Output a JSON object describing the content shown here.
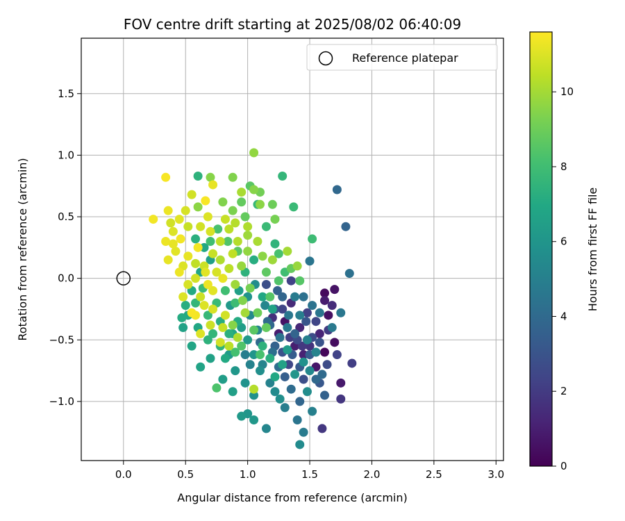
{
  "chart_data": {
    "type": "scatter",
    "title": "FOV centre drift starting at 2025/08/02 06:40:09",
    "xlabel": "Angular distance from reference (arcmin)",
    "ylabel": "Rotation from reference (arcmin)",
    "colorbar_label": "Hours from first FF file",
    "xlim": [
      -0.34,
      3.06
    ],
    "ylim": [
      -1.48,
      1.95
    ],
    "x_ticks": [
      0.0,
      0.5,
      1.0,
      1.5,
      2.0,
      2.5,
      3.0
    ],
    "x_tick_labels": [
      "0.0",
      "0.5",
      "1.0",
      "1.5",
      "2.0",
      "2.5",
      "3.0"
    ],
    "y_ticks": [
      -1.0,
      -0.5,
      0.0,
      0.5,
      1.0,
      1.5
    ],
    "y_tick_labels": [
      "−1.0",
      "−0.5",
      "0.0",
      "0.5",
      "1.0",
      "1.5"
    ],
    "colorbar_range": [
      0,
      11.6
    ],
    "colorbar_ticks": [
      0,
      2,
      4,
      6,
      8,
      10
    ],
    "colorbar_tick_labels": [
      "0",
      "2",
      "4",
      "6",
      "8",
      "10"
    ],
    "colormap": "viridis",
    "grid": true,
    "legend": {
      "position": "top-right",
      "entries": [
        {
          "label": "Reference platepar",
          "marker": "open-circle"
        }
      ]
    },
    "reference_point": {
      "x": 0.0,
      "y": 0.0
    },
    "points": [
      {
        "x": 1.62,
        "y": -0.12,
        "t": 0.3
      },
      {
        "x": 1.7,
        "y": -0.09,
        "t": 0.6
      },
      {
        "x": 1.62,
        "y": -0.18,
        "t": 0.9
      },
      {
        "x": 1.65,
        "y": -0.3,
        "t": 0.5
      },
      {
        "x": 1.58,
        "y": -0.45,
        "t": 1.2
      },
      {
        "x": 1.62,
        "y": -0.6,
        "t": 0.2
      },
      {
        "x": 1.7,
        "y": -0.52,
        "t": 0.4
      },
      {
        "x": 1.75,
        "y": -0.85,
        "t": 0.8
      },
      {
        "x": 1.45,
        "y": -0.62,
        "t": 1.1
      },
      {
        "x": 1.55,
        "y": -0.72,
        "t": 0.7
      },
      {
        "x": 1.38,
        "y": -0.55,
        "t": 1.0
      },
      {
        "x": 1.3,
        "y": -0.35,
        "t": 0.6
      },
      {
        "x": 1.35,
        "y": -0.2,
        "t": 1.4
      },
      {
        "x": 1.25,
        "y": -0.45,
        "t": 0.9
      },
      {
        "x": 1.2,
        "y": -0.32,
        "t": 1.6
      },
      {
        "x": 1.42,
        "y": -0.4,
        "t": 1.3
      },
      {
        "x": 1.5,
        "y": -0.55,
        "t": 1.7
      },
      {
        "x": 1.6,
        "y": -1.22,
        "t": 1.9
      },
      {
        "x": 1.75,
        "y": -0.98,
        "t": 1.8
      },
      {
        "x": 1.84,
        "y": -0.69,
        "t": 2.1
      },
      {
        "x": 1.72,
        "y": -0.62,
        "t": 2.3
      },
      {
        "x": 1.65,
        "y": -0.42,
        "t": 2.0
      },
      {
        "x": 1.55,
        "y": -0.35,
        "t": 2.4
      },
      {
        "x": 1.48,
        "y": -0.28,
        "t": 2.2
      },
      {
        "x": 1.4,
        "y": -0.5,
        "t": 2.6
      },
      {
        "x": 1.33,
        "y": -0.7,
        "t": 2.5
      },
      {
        "x": 1.45,
        "y": -0.82,
        "t": 2.8
      },
      {
        "x": 1.52,
        "y": -0.48,
        "t": 2.7
      },
      {
        "x": 1.28,
        "y": -0.6,
        "t": 2.9
      },
      {
        "x": 1.35,
        "y": -0.02,
        "t": 2.3
      },
      {
        "x": 1.15,
        "y": -0.05,
        "t": 2.8
      },
      {
        "x": 1.22,
        "y": -0.25,
        "t": 3.0
      },
      {
        "x": 1.47,
        "y": -0.35,
        "t": 3.1
      },
      {
        "x": 1.42,
        "y": -0.72,
        "t": 3.3
      },
      {
        "x": 1.58,
        "y": -0.85,
        "t": 3.2
      },
      {
        "x": 1.5,
        "y": -0.62,
        "t": 3.4
      },
      {
        "x": 1.3,
        "y": -0.8,
        "t": 3.5
      },
      {
        "x": 1.22,
        "y": -0.55,
        "t": 3.6
      },
      {
        "x": 1.38,
        "y": -0.45,
        "t": 3.7
      },
      {
        "x": 1.28,
        "y": -0.15,
        "t": 3.8
      },
      {
        "x": 1.18,
        "y": -0.38,
        "t": 3.9
      },
      {
        "x": 1.1,
        "y": -0.52,
        "t": 4.0
      },
      {
        "x": 1.42,
        "y": -1.0,
        "t": 3.8
      },
      {
        "x": 1.62,
        "y": -0.95,
        "t": 3.6
      },
      {
        "x": 1.55,
        "y": -0.82,
        "t": 3.9
      },
      {
        "x": 1.35,
        "y": -0.9,
        "t": 4.1
      },
      {
        "x": 1.25,
        "y": -0.72,
        "t": 4.2
      },
      {
        "x": 1.45,
        "y": -0.15,
        "t": 4.3
      },
      {
        "x": 1.52,
        "y": -0.22,
        "t": 4.4
      },
      {
        "x": 1.58,
        "y": -0.28,
        "t": 4.5
      },
      {
        "x": 1.33,
        "y": -0.3,
        "t": 4.6
      },
      {
        "x": 1.72,
        "y": 0.72,
        "t": 3.9
      },
      {
        "x": 1.79,
        "y": 0.42,
        "t": 3.7
      },
      {
        "x": 1.82,
        "y": 0.04,
        "t": 4.3
      },
      {
        "x": 1.5,
        "y": 0.14,
        "t": 4.5
      },
      {
        "x": 1.75,
        "y": -0.28,
        "t": 4.6
      },
      {
        "x": 1.68,
        "y": -0.4,
        "t": 4.7
      },
      {
        "x": 1.4,
        "y": -1.15,
        "t": 4.5
      },
      {
        "x": 1.45,
        "y": -1.25,
        "t": 4.8
      },
      {
        "x": 1.52,
        "y": -1.08,
        "t": 5.0
      },
      {
        "x": 1.3,
        "y": -1.05,
        "t": 4.9
      },
      {
        "x": 1.18,
        "y": -0.85,
        "t": 5.1
      },
      {
        "x": 1.12,
        "y": -0.7,
        "t": 5.2
      },
      {
        "x": 1.08,
        "y": -0.42,
        "t": 5.3
      },
      {
        "x": 1.02,
        "y": -0.3,
        "t": 5.4
      },
      {
        "x": 1.15,
        "y": -1.22,
        "t": 5.3
      },
      {
        "x": 1.42,
        "y": -1.35,
        "t": 5.5
      },
      {
        "x": 1.6,
        "y": -0.78,
        "t": 4.0
      },
      {
        "x": 1.48,
        "y": -0.92,
        "t": 5.6
      },
      {
        "x": 1.26,
        "y": -0.98,
        "t": 5.7
      },
      {
        "x": 1.05,
        "y": -0.95,
        "t": 5.8
      },
      {
        "x": 0.98,
        "y": -0.85,
        "t": 5.9
      },
      {
        "x": 1.0,
        "y": -1.1,
        "t": 6.0
      },
      {
        "x": 1.05,
        "y": -1.15,
        "t": 6.1
      },
      {
        "x": 0.95,
        "y": -1.12,
        "t": 6.2
      },
      {
        "x": 0.9,
        "y": -0.75,
        "t": 6.1
      },
      {
        "x": 0.85,
        "y": -0.62,
        "t": 6.3
      },
      {
        "x": 0.8,
        "y": -0.82,
        "t": 6.4
      },
      {
        "x": 0.88,
        "y": -0.92,
        "t": 6.5
      },
      {
        "x": 0.7,
        "y": -0.65,
        "t": 6.6
      },
      {
        "x": 0.62,
        "y": -0.72,
        "t": 6.7
      },
      {
        "x": 0.55,
        "y": -0.55,
        "t": 6.8
      },
      {
        "x": 0.6,
        "y": -0.4,
        "t": 6.9
      },
      {
        "x": 0.52,
        "y": -0.3,
        "t": 7.0
      },
      {
        "x": 0.48,
        "y": -0.4,
        "t": 6.6
      },
      {
        "x": 0.47,
        "y": -0.32,
        "t": 7.1
      },
      {
        "x": 0.5,
        "y": -0.22,
        "t": 7.2
      },
      {
        "x": 0.55,
        "y": -0.1,
        "t": 7.0
      },
      {
        "x": 0.62,
        "y": 0.05,
        "t": 6.8
      },
      {
        "x": 0.7,
        "y": 0.15,
        "t": 6.5
      },
      {
        "x": 0.65,
        "y": 0.25,
        "t": 6.9
      },
      {
        "x": 0.58,
        "y": 0.32,
        "t": 7.3
      },
      {
        "x": 0.6,
        "y": 0.83,
        "t": 7.4
      },
      {
        "x": 1.28,
        "y": 0.83,
        "t": 7.6
      },
      {
        "x": 1.52,
        "y": 0.32,
        "t": 7.9
      },
      {
        "x": 1.37,
        "y": 0.58,
        "t": 7.8
      },
      {
        "x": 1.08,
        "y": 0.6,
        "t": 7.7
      },
      {
        "x": 1.15,
        "y": 0.42,
        "t": 7.8
      },
      {
        "x": 1.22,
        "y": 0.28,
        "t": 7.5
      },
      {
        "x": 1.05,
        "y": 0.15,
        "t": 7.2
      },
      {
        "x": 0.98,
        "y": 0.05,
        "t": 7.4
      },
      {
        "x": 1.12,
        "y": -0.15,
        "t": 6.9
      },
      {
        "x": 1.2,
        "y": -0.25,
        "t": 6.7
      },
      {
        "x": 0.92,
        "y": -0.35,
        "t": 7.1
      },
      {
        "x": 0.85,
        "y": -0.45,
        "t": 7.3
      },
      {
        "x": 0.78,
        "y": -0.55,
        "t": 7.5
      },
      {
        "x": 0.72,
        "y": -0.45,
        "t": 7.6
      },
      {
        "x": 0.68,
        "y": -0.3,
        "t": 7.7
      },
      {
        "x": 0.75,
        "y": -0.2,
        "t": 7.8
      },
      {
        "x": 0.82,
        "y": -0.1,
        "t": 8.0
      },
      {
        "x": 0.9,
        "y": -0.2,
        "t": 7.9
      },
      {
        "x": 0.95,
        "y": -0.4,
        "t": 6.4
      },
      {
        "x": 1.0,
        "y": -0.5,
        "t": 6.2
      },
      {
        "x": 1.05,
        "y": -0.62,
        "t": 6.0
      },
      {
        "x": 1.1,
        "y": -0.75,
        "t": 5.7
      },
      {
        "x": 1.22,
        "y": -0.92,
        "t": 5.5
      },
      {
        "x": 0.75,
        "y": -0.89,
        "t": 8.3
      },
      {
        "x": 0.9,
        "y": -0.6,
        "t": 8.1
      },
      {
        "x": 0.95,
        "y": -0.55,
        "t": 8.4
      },
      {
        "x": 1.05,
        "y": -0.42,
        "t": 8.6
      },
      {
        "x": 1.1,
        "y": -0.62,
        "t": 8.2
      },
      {
        "x": 1.15,
        "y": 0.05,
        "t": 8.7
      },
      {
        "x": 1.25,
        "y": -0.02,
        "t": 8.4
      },
      {
        "x": 1.35,
        "y": 0.08,
        "t": 8.8
      },
      {
        "x": 1.42,
        "y": -0.02,
        "t": 8.5
      },
      {
        "x": 1.02,
        "y": 0.75,
        "t": 8.6
      },
      {
        "x": 0.95,
        "y": 0.62,
        "t": 8.8
      },
      {
        "x": 1.2,
        "y": 0.6,
        "t": 9.0
      },
      {
        "x": 1.22,
        "y": 0.48,
        "t": 9.2
      },
      {
        "x": 1.1,
        "y": 0.7,
        "t": 9.1
      },
      {
        "x": 0.88,
        "y": 0.55,
        "t": 9.3
      },
      {
        "x": 0.8,
        "y": 0.62,
        "t": 9.4
      },
      {
        "x": 0.7,
        "y": 0.82,
        "t": 9.5
      },
      {
        "x": 0.6,
        "y": 0.58,
        "t": 9.6
      },
      {
        "x": 1.05,
        "y": 1.02,
        "t": 9.7
      },
      {
        "x": 0.88,
        "y": 0.82,
        "t": 9.4
      },
      {
        "x": 1.05,
        "y": 0.72,
        "t": 9.5
      },
      {
        "x": 1.1,
        "y": 0.6,
        "t": 9.6
      },
      {
        "x": 1.32,
        "y": 0.22,
        "t": 10.0
      },
      {
        "x": 1.4,
        "y": 0.1,
        "t": 9.8
      },
      {
        "x": 1.2,
        "y": 0.15,
        "t": 9.9
      },
      {
        "x": 1.08,
        "y": 0.3,
        "t": 10.1
      },
      {
        "x": 1.0,
        "y": 0.42,
        "t": 10.2
      },
      {
        "x": 0.92,
        "y": 0.3,
        "t": 10.3
      },
      {
        "x": 0.85,
        "y": 0.4,
        "t": 10.4
      },
      {
        "x": 0.78,
        "y": 0.3,
        "t": 10.5
      },
      {
        "x": 0.72,
        "y": 0.2,
        "t": 10.6
      },
      {
        "x": 0.65,
        "y": 0.1,
        "t": 10.7
      },
      {
        "x": 0.58,
        "y": 0.0,
        "t": 10.8
      },
      {
        "x": 0.52,
        "y": -0.05,
        "t": 10.9
      },
      {
        "x": 0.48,
        "y": 0.1,
        "t": 11.0
      },
      {
        "x": 0.42,
        "y": 0.22,
        "t": 11.1
      },
      {
        "x": 0.36,
        "y": 0.15,
        "t": 11.2
      },
      {
        "x": 0.34,
        "y": 0.3,
        "t": 11.3
      },
      {
        "x": 0.4,
        "y": 0.38,
        "t": 11.0
      },
      {
        "x": 0.45,
        "y": 0.48,
        "t": 11.1
      },
      {
        "x": 0.5,
        "y": 0.55,
        "t": 10.9
      },
      {
        "x": 0.55,
        "y": 0.68,
        "t": 10.8
      },
      {
        "x": 0.34,
        "y": 0.82,
        "t": 11.5
      },
      {
        "x": 0.24,
        "y": 0.48,
        "t": 11.4
      },
      {
        "x": 0.36,
        "y": 0.55,
        "t": 11.3
      },
      {
        "x": 0.66,
        "y": 0.63,
        "t": 11.5
      },
      {
        "x": 0.72,
        "y": 0.76,
        "t": 11.2
      },
      {
        "x": 0.68,
        "y": 0.5,
        "t": 11.0
      },
      {
        "x": 0.7,
        "y": 0.38,
        "t": 10.9
      },
      {
        "x": 0.62,
        "y": 0.42,
        "t": 10.8
      },
      {
        "x": 0.82,
        "y": 0.48,
        "t": 10.6
      },
      {
        "x": 0.88,
        "y": 0.2,
        "t": 10.5
      },
      {
        "x": 0.8,
        "y": 0.0,
        "t": 11.2
      },
      {
        "x": 0.72,
        "y": -0.1,
        "t": 11.1
      },
      {
        "x": 0.65,
        "y": -0.22,
        "t": 11.0
      },
      {
        "x": 0.58,
        "y": -0.3,
        "t": 11.4
      },
      {
        "x": 0.7,
        "y": -0.38,
        "t": 10.7
      },
      {
        "x": 0.8,
        "y": -0.4,
        "t": 10.6
      },
      {
        "x": 0.78,
        "y": -0.52,
        "t": 10.8
      },
      {
        "x": 0.85,
        "y": -0.55,
        "t": 10.4
      },
      {
        "x": 0.92,
        "y": -0.48,
        "t": 10.2
      },
      {
        "x": 1.05,
        "y": -0.9,
        "t": 10.3
      },
      {
        "x": 0.98,
        "y": -0.28,
        "t": 10.0
      },
      {
        "x": 0.9,
        "y": -0.05,
        "t": 9.9
      },
      {
        "x": 0.95,
        "y": 0.1,
        "t": 9.8
      },
      {
        "x": 1.0,
        "y": 0.22,
        "t": 9.7
      },
      {
        "x": 1.12,
        "y": 0.18,
        "t": 9.6
      },
      {
        "x": 0.45,
        "y": 0.05,
        "t": 11.3
      },
      {
        "x": 0.52,
        "y": 0.18,
        "t": 11.2
      },
      {
        "x": 0.6,
        "y": 0.25,
        "t": 11.4
      },
      {
        "x": 0.66,
        "y": 0.05,
        "t": 11.1
      },
      {
        "x": 0.75,
        "y": 0.05,
        "t": 10.9
      },
      {
        "x": 0.48,
        "y": -0.15,
        "t": 11.0
      },
      {
        "x": 0.55,
        "y": -0.28,
        "t": 11.5
      },
      {
        "x": 0.62,
        "y": -0.15,
        "t": 10.7
      },
      {
        "x": 0.4,
        "y": 0.28,
        "t": 11.2
      },
      {
        "x": 0.46,
        "y": 0.32,
        "t": 11.4
      },
      {
        "x": 0.38,
        "y": 0.45,
        "t": 10.8
      },
      {
        "x": 0.52,
        "y": 0.42,
        "t": 10.6
      },
      {
        "x": 0.58,
        "y": 0.12,
        "t": 10.5
      },
      {
        "x": 0.85,
        "y": 0.08,
        "t": 10.4
      },
      {
        "x": 0.68,
        "y": -0.05,
        "t": 11.3
      },
      {
        "x": 0.78,
        "y": 0.15,
        "t": 10.2
      },
      {
        "x": 0.9,
        "y": 0.45,
        "t": 10.3
      },
      {
        "x": 0.95,
        "y": 0.7,
        "t": 10.1
      },
      {
        "x": 1.0,
        "y": 0.35,
        "t": 9.9
      },
      {
        "x": 0.62,
        "y": -0.45,
        "t": 11.0
      },
      {
        "x": 0.72,
        "y": -0.25,
        "t": 10.9
      },
      {
        "x": 0.82,
        "y": -0.3,
        "t": 10.8
      },
      {
        "x": 0.88,
        "y": -0.38,
        "t": 9.5
      },
      {
        "x": 0.96,
        "y": -0.18,
        "t": 9.4
      },
      {
        "x": 1.02,
        "y": -0.08,
        "t": 9.2
      },
      {
        "x": 1.08,
        "y": -0.28,
        "t": 9.0
      },
      {
        "x": 1.15,
        "y": -0.4,
        "t": 8.8
      },
      {
        "x": 1.18,
        "y": -0.15,
        "t": 8.5
      },
      {
        "x": 1.25,
        "y": 0.2,
        "t": 8.2
      },
      {
        "x": 1.3,
        "y": 0.05,
        "t": 8.0
      },
      {
        "x": 1.12,
        "y": -0.55,
        "t": 7.4
      },
      {
        "x": 1.18,
        "y": -0.65,
        "t": 7.2
      },
      {
        "x": 1.22,
        "y": -0.8,
        "t": 6.9
      },
      {
        "x": 1.28,
        "y": -0.7,
        "t": 6.6
      },
      {
        "x": 1.32,
        "y": -0.58,
        "t": 6.3
      },
      {
        "x": 1.38,
        "y": -0.78,
        "t": 6.0
      },
      {
        "x": 1.45,
        "y": -0.68,
        "t": 5.8
      },
      {
        "x": 1.5,
        "y": -0.75,
        "t": 5.4
      },
      {
        "x": 1.55,
        "y": -0.6,
        "t": 5.2
      },
      {
        "x": 1.48,
        "y": -0.5,
        "t": 5.0
      },
      {
        "x": 1.42,
        "y": -0.3,
        "t": 4.9
      },
      {
        "x": 1.38,
        "y": -0.15,
        "t": 4.8
      },
      {
        "x": 1.32,
        "y": -0.4,
        "t": 4.7
      },
      {
        "x": 1.26,
        "y": -0.48,
        "t": 4.4
      },
      {
        "x": 1.2,
        "y": -0.6,
        "t": 4.2
      },
      {
        "x": 1.16,
        "y": -0.35,
        "t": 4.0
      },
      {
        "x": 1.24,
        "y": -0.1,
        "t": 3.6
      },
      {
        "x": 1.36,
        "y": -0.62,
        "t": 3.4
      },
      {
        "x": 1.58,
        "y": -0.52,
        "t": 3.0
      },
      {
        "x": 1.64,
        "y": -0.7,
        "t": 2.6
      },
      {
        "x": 1.68,
        "y": -0.22,
        "t": 1.5
      },
      {
        "x": 1.44,
        "y": -0.55,
        "t": 1.9
      },
      {
        "x": 1.34,
        "y": -0.48,
        "t": 2.1
      },
      {
        "x": 1.28,
        "y": -0.25,
        "t": 2.4
      },
      {
        "x": 0.88,
        "y": -0.45,
        "t": 6.8
      },
      {
        "x": 0.82,
        "y": -0.65,
        "t": 7.0
      },
      {
        "x": 0.78,
        "y": -0.35,
        "t": 7.2
      },
      {
        "x": 0.68,
        "y": -0.5,
        "t": 7.4
      },
      {
        "x": 0.58,
        "y": -0.2,
        "t": 7.6
      },
      {
        "x": 0.64,
        "y": -0.08,
        "t": 7.8
      },
      {
        "x": 0.7,
        "y": 0.3,
        "t": 8.0
      },
      {
        "x": 0.76,
        "y": 0.4,
        "t": 8.2
      },
      {
        "x": 0.84,
        "y": 0.3,
        "t": 8.4
      },
      {
        "x": 0.92,
        "y": 0.22,
        "t": 8.6
      },
      {
        "x": 0.98,
        "y": 0.5,
        "t": 8.8
      },
      {
        "x": 0.93,
        "y": -0.1,
        "t": 6.5
      },
      {
        "x": 0.86,
        "y": -0.22,
        "t": 6.2
      },
      {
        "x": 1.0,
        "y": -0.15,
        "t": 5.9
      },
      {
        "x": 1.06,
        "y": -0.05,
        "t": 5.6
      },
      {
        "x": 1.14,
        "y": -0.22,
        "t": 5.3
      },
      {
        "x": 1.02,
        "y": -0.7,
        "t": 5.1
      },
      {
        "x": 0.98,
        "y": -0.62,
        "t": 4.9
      }
    ]
  }
}
